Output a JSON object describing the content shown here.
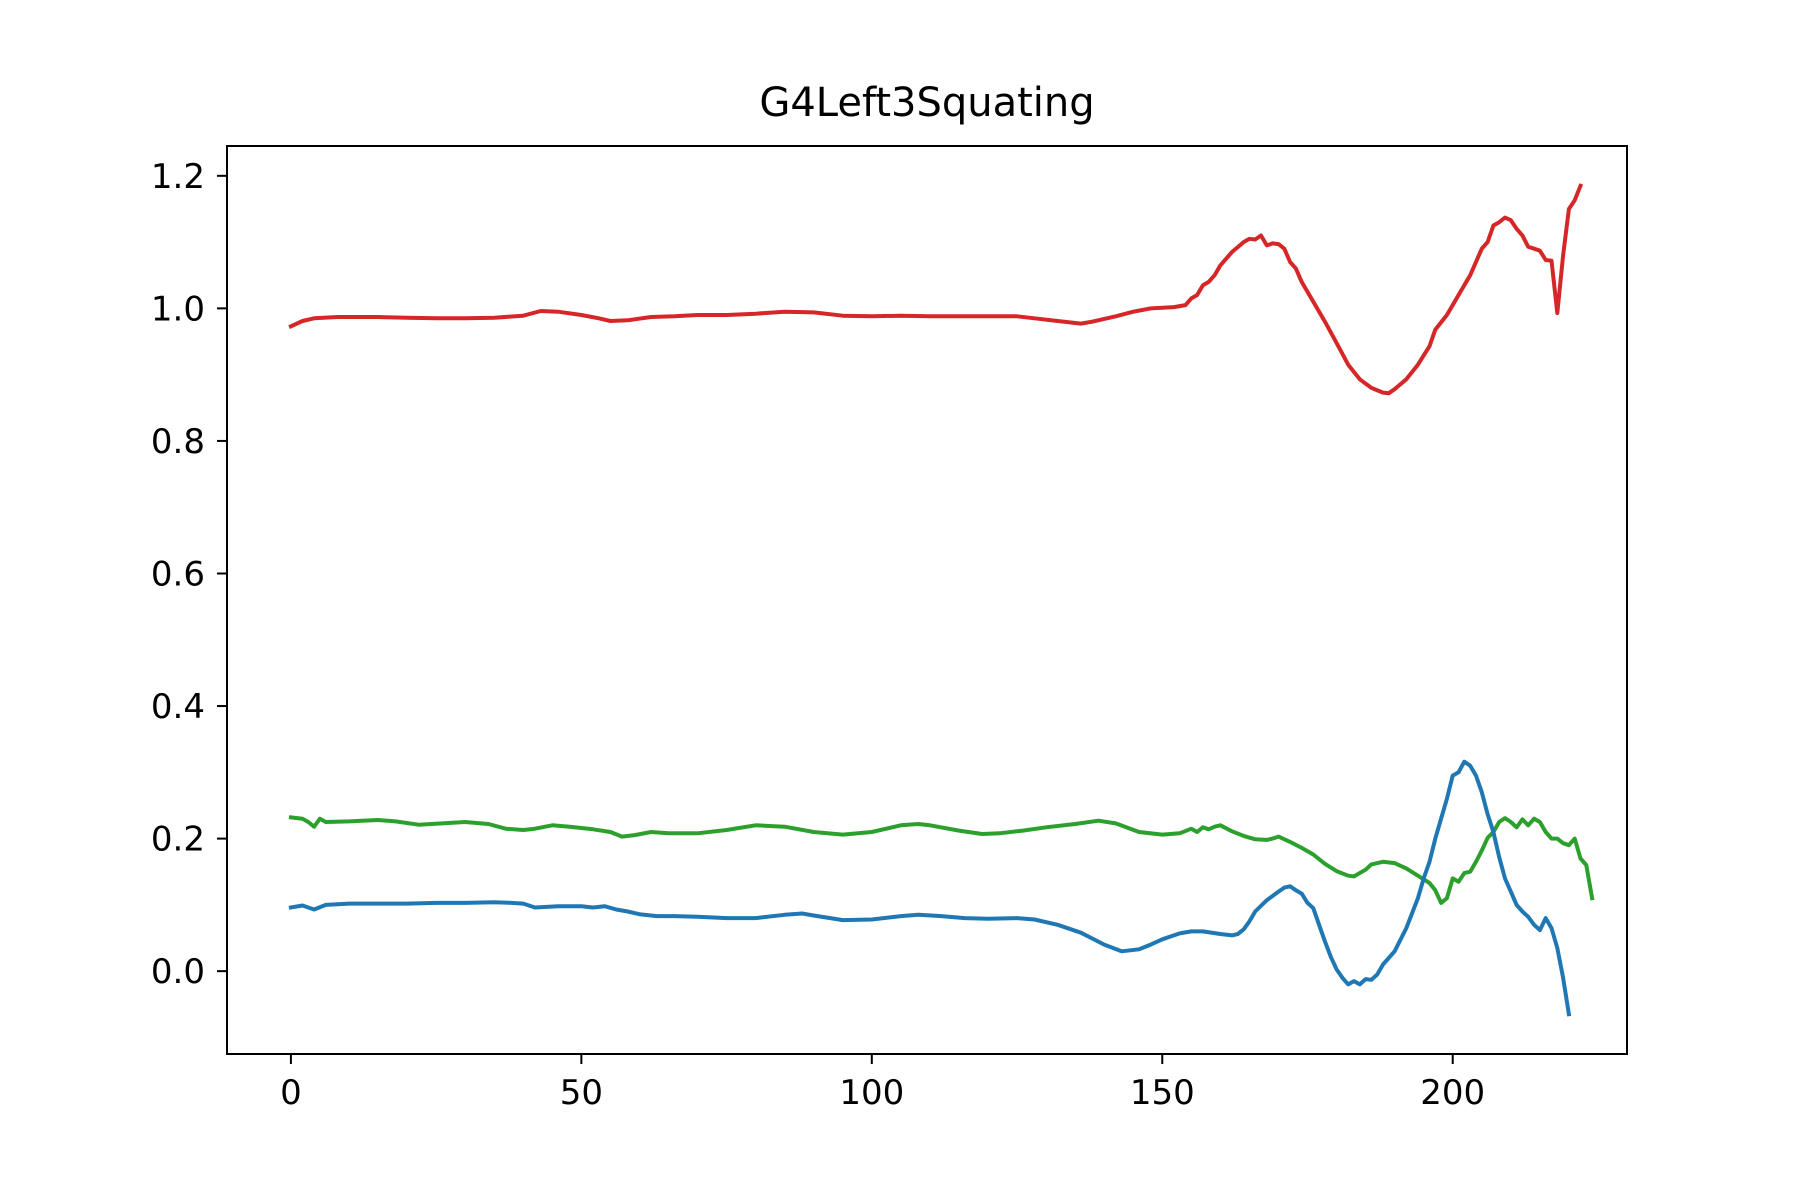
{
  "chart_data": {
    "type": "line",
    "title": "G4Left3Squating",
    "xlabel": "",
    "ylabel": "",
    "xlim": [
      -11,
      230
    ],
    "ylim": [
      -0.125,
      1.245
    ],
    "xticks": [
      0,
      50,
      100,
      150,
      200
    ],
    "xtick_labels": [
      "0",
      "50",
      "100",
      "150",
      "200"
    ],
    "yticks": [
      0.0,
      0.2,
      0.4,
      0.6,
      0.8,
      1.0,
      1.2
    ],
    "ytick_labels": [
      "0.0",
      "0.2",
      "0.4",
      "0.6",
      "0.8",
      "1.0",
      "1.2"
    ],
    "grid": false,
    "series": [
      {
        "color": "#d62728",
        "points": [
          [
            0,
            0.973
          ],
          [
            2,
            0.981
          ],
          [
            4,
            0.985
          ],
          [
            8,
            0.987
          ],
          [
            15,
            0.987
          ],
          [
            20,
            0.986
          ],
          [
            25,
            0.985
          ],
          [
            30,
            0.985
          ],
          [
            35,
            0.986
          ],
          [
            40,
            0.989
          ],
          [
            43,
            0.996
          ],
          [
            46,
            0.995
          ],
          [
            50,
            0.99
          ],
          [
            53,
            0.985
          ],
          [
            55,
            0.981
          ],
          [
            58,
            0.982
          ],
          [
            62,
            0.987
          ],
          [
            66,
            0.988
          ],
          [
            70,
            0.99
          ],
          [
            75,
            0.99
          ],
          [
            80,
            0.992
          ],
          [
            85,
            0.995
          ],
          [
            90,
            0.994
          ],
          [
            95,
            0.989
          ],
          [
            100,
            0.988
          ],
          [
            105,
            0.989
          ],
          [
            110,
            0.988
          ],
          [
            115,
            0.988
          ],
          [
            120,
            0.988
          ],
          [
            125,
            0.988
          ],
          [
            128,
            0.985
          ],
          [
            132,
            0.981
          ],
          [
            136,
            0.977
          ],
          [
            138,
            0.98
          ],
          [
            142,
            0.988
          ],
          [
            145,
            0.995
          ],
          [
            148,
            1.0
          ],
          [
            152,
            1.002
          ],
          [
            154,
            1.005
          ],
          [
            155,
            1.015
          ],
          [
            156,
            1.02
          ],
          [
            157,
            1.035
          ],
          [
            158,
            1.04
          ],
          [
            159,
            1.05
          ],
          [
            160,
            1.065
          ],
          [
            162,
            1.085
          ],
          [
            164,
            1.1
          ],
          [
            165,
            1.105
          ],
          [
            166,
            1.104
          ],
          [
            167,
            1.11
          ],
          [
            168,
            1.095
          ],
          [
            169,
            1.098
          ],
          [
            170,
            1.097
          ],
          [
            171,
            1.09
          ],
          [
            172,
            1.07
          ],
          [
            173,
            1.06
          ],
          [
            174,
            1.04
          ],
          [
            176,
            1.01
          ],
          [
            178,
            0.98
          ],
          [
            180,
            0.948
          ],
          [
            182,
            0.915
          ],
          [
            184,
            0.893
          ],
          [
            186,
            0.88
          ],
          [
            188,
            0.873
          ],
          [
            189,
            0.872
          ],
          [
            190,
            0.878
          ],
          [
            192,
            0.893
          ],
          [
            194,
            0.915
          ],
          [
            196,
            0.943
          ],
          [
            197,
            0.968
          ],
          [
            199,
            0.99
          ],
          [
            201,
            1.02
          ],
          [
            203,
            1.05
          ],
          [
            205,
            1.09
          ],
          [
            206,
            1.1
          ],
          [
            207,
            1.125
          ],
          [
            208,
            1.13
          ],
          [
            209,
            1.137
          ],
          [
            210,
            1.133
          ],
          [
            211,
            1.12
          ],
          [
            212,
            1.11
          ],
          [
            213,
            1.093
          ],
          [
            214,
            1.09
          ],
          [
            215,
            1.087
          ],
          [
            216,
            1.073
          ],
          [
            217,
            1.072
          ],
          [
            218,
            0.993
          ],
          [
            219,
            1.08
          ],
          [
            220,
            1.15
          ],
          [
            221,
            1.163
          ],
          [
            222,
            1.185
          ]
        ]
      },
      {
        "color": "#2ca02c",
        "points": [
          [
            0,
            0.232
          ],
          [
            2,
            0.23
          ],
          [
            3,
            0.225
          ],
          [
            4,
            0.218
          ],
          [
            5,
            0.23
          ],
          [
            6,
            0.225
          ],
          [
            10,
            0.226
          ],
          [
            15,
            0.228
          ],
          [
            18,
            0.226
          ],
          [
            22,
            0.221
          ],
          [
            26,
            0.223
          ],
          [
            30,
            0.225
          ],
          [
            34,
            0.222
          ],
          [
            37,
            0.215
          ],
          [
            40,
            0.213
          ],
          [
            42,
            0.215
          ],
          [
            45,
            0.22
          ],
          [
            48,
            0.218
          ],
          [
            52,
            0.214
          ],
          [
            55,
            0.21
          ],
          [
            57,
            0.203
          ],
          [
            59,
            0.205
          ],
          [
            62,
            0.21
          ],
          [
            65,
            0.208
          ],
          [
            70,
            0.208
          ],
          [
            75,
            0.213
          ],
          [
            80,
            0.22
          ],
          [
            85,
            0.218
          ],
          [
            90,
            0.21
          ],
          [
            95,
            0.206
          ],
          [
            100,
            0.21
          ],
          [
            105,
            0.22
          ],
          [
            108,
            0.222
          ],
          [
            110,
            0.22
          ],
          [
            115,
            0.212
          ],
          [
            119,
            0.207
          ],
          [
            122,
            0.208
          ],
          [
            126,
            0.212
          ],
          [
            130,
            0.217
          ],
          [
            135,
            0.222
          ],
          [
            139,
            0.227
          ],
          [
            142,
            0.223
          ],
          [
            146,
            0.21
          ],
          [
            150,
            0.206
          ],
          [
            153,
            0.208
          ],
          [
            155,
            0.215
          ],
          [
            156,
            0.21
          ],
          [
            157,
            0.217
          ],
          [
            158,
            0.214
          ],
          [
            159,
            0.218
          ],
          [
            160,
            0.22
          ],
          [
            162,
            0.211
          ],
          [
            164,
            0.204
          ],
          [
            166,
            0.199
          ],
          [
            168,
            0.198
          ],
          [
            169,
            0.2
          ],
          [
            170,
            0.203
          ],
          [
            172,
            0.195
          ],
          [
            174,
            0.186
          ],
          [
            176,
            0.176
          ],
          [
            178,
            0.162
          ],
          [
            180,
            0.151
          ],
          [
            182,
            0.144
          ],
          [
            183,
            0.143
          ],
          [
            185,
            0.153
          ],
          [
            186,
            0.161
          ],
          [
            188,
            0.165
          ],
          [
            190,
            0.163
          ],
          [
            192,
            0.155
          ],
          [
            194,
            0.144
          ],
          [
            196,
            0.133
          ],
          [
            197,
            0.122
          ],
          [
            198,
            0.103
          ],
          [
            199,
            0.11
          ],
          [
            200,
            0.14
          ],
          [
            201,
            0.135
          ],
          [
            202,
            0.148
          ],
          [
            203,
            0.15
          ],
          [
            204,
            0.165
          ],
          [
            205,
            0.182
          ],
          [
            206,
            0.201
          ],
          [
            207,
            0.21
          ],
          [
            208,
            0.225
          ],
          [
            209,
            0.231
          ],
          [
            210,
            0.225
          ],
          [
            211,
            0.217
          ],
          [
            212,
            0.229
          ],
          [
            213,
            0.22
          ],
          [
            214,
            0.23
          ],
          [
            215,
            0.225
          ],
          [
            216,
            0.21
          ],
          [
            217,
            0.2
          ],
          [
            218,
            0.2
          ],
          [
            219,
            0.193
          ],
          [
            220,
            0.19
          ],
          [
            221,
            0.2
          ],
          [
            222,
            0.17
          ],
          [
            223,
            0.16
          ],
          [
            224,
            0.11
          ]
        ]
      },
      {
        "color": "#1f77b4",
        "points": [
          [
            0,
            0.096
          ],
          [
            2,
            0.099
          ],
          [
            4,
            0.093
          ],
          [
            6,
            0.1
          ],
          [
            10,
            0.102
          ],
          [
            15,
            0.102
          ],
          [
            20,
            0.102
          ],
          [
            25,
            0.103
          ],
          [
            30,
            0.103
          ],
          [
            35,
            0.104
          ],
          [
            38,
            0.103
          ],
          [
            40,
            0.102
          ],
          [
            42,
            0.096
          ],
          [
            46,
            0.098
          ],
          [
            50,
            0.098
          ],
          [
            52,
            0.096
          ],
          [
            54,
            0.098
          ],
          [
            56,
            0.093
          ],
          [
            58,
            0.09
          ],
          [
            60,
            0.086
          ],
          [
            63,
            0.083
          ],
          [
            66,
            0.083
          ],
          [
            70,
            0.082
          ],
          [
            75,
            0.08
          ],
          [
            80,
            0.08
          ],
          [
            85,
            0.085
          ],
          [
            88,
            0.087
          ],
          [
            90,
            0.084
          ],
          [
            95,
            0.077
          ],
          [
            100,
            0.078
          ],
          [
            105,
            0.083
          ],
          [
            108,
            0.085
          ],
          [
            112,
            0.083
          ],
          [
            116,
            0.08
          ],
          [
            120,
            0.079
          ],
          [
            125,
            0.08
          ],
          [
            128,
            0.078
          ],
          [
            132,
            0.07
          ],
          [
            136,
            0.058
          ],
          [
            140,
            0.04
          ],
          [
            143,
            0.03
          ],
          [
            146,
            0.033
          ],
          [
            148,
            0.04
          ],
          [
            150,
            0.048
          ],
          [
            153,
            0.057
          ],
          [
            155,
            0.06
          ],
          [
            157,
            0.06
          ],
          [
            160,
            0.056
          ],
          [
            162,
            0.054
          ],
          [
            163,
            0.056
          ],
          [
            164,
            0.063
          ],
          [
            165,
            0.075
          ],
          [
            166,
            0.09
          ],
          [
            168,
            0.107
          ],
          [
            170,
            0.12
          ],
          [
            171,
            0.126
          ],
          [
            172,
            0.128
          ],
          [
            173,
            0.122
          ],
          [
            174,
            0.117
          ],
          [
            175,
            0.103
          ],
          [
            176,
            0.095
          ],
          [
            177,
            0.07
          ],
          [
            178,
            0.045
          ],
          [
            179,
            0.022
          ],
          [
            180,
            0.003
          ],
          [
            181,
            -0.01
          ],
          [
            182,
            -0.02
          ],
          [
            183,
            -0.015
          ],
          [
            184,
            -0.02
          ],
          [
            185,
            -0.012
          ],
          [
            186,
            -0.013
          ],
          [
            187,
            -0.005
          ],
          [
            188,
            0.01
          ],
          [
            190,
            0.03
          ],
          [
            192,
            0.065
          ],
          [
            194,
            0.11
          ],
          [
            195,
            0.14
          ],
          [
            196,
            0.165
          ],
          [
            197,
            0.2
          ],
          [
            198,
            0.23
          ],
          [
            199,
            0.26
          ],
          [
            200,
            0.295
          ],
          [
            201,
            0.3
          ],
          [
            202,
            0.316
          ],
          [
            203,
            0.31
          ],
          [
            204,
            0.295
          ],
          [
            205,
            0.27
          ],
          [
            206,
            0.237
          ],
          [
            207,
            0.21
          ],
          [
            208,
            0.172
          ],
          [
            209,
            0.14
          ],
          [
            210,
            0.12
          ],
          [
            211,
            0.1
          ],
          [
            212,
            0.09
          ],
          [
            213,
            0.082
          ],
          [
            214,
            0.07
          ],
          [
            215,
            0.062
          ],
          [
            216,
            0.08
          ],
          [
            217,
            0.065
          ],
          [
            218,
            0.035
          ],
          [
            219,
            -0.01
          ],
          [
            220,
            -0.065
          ]
        ]
      }
    ]
  }
}
